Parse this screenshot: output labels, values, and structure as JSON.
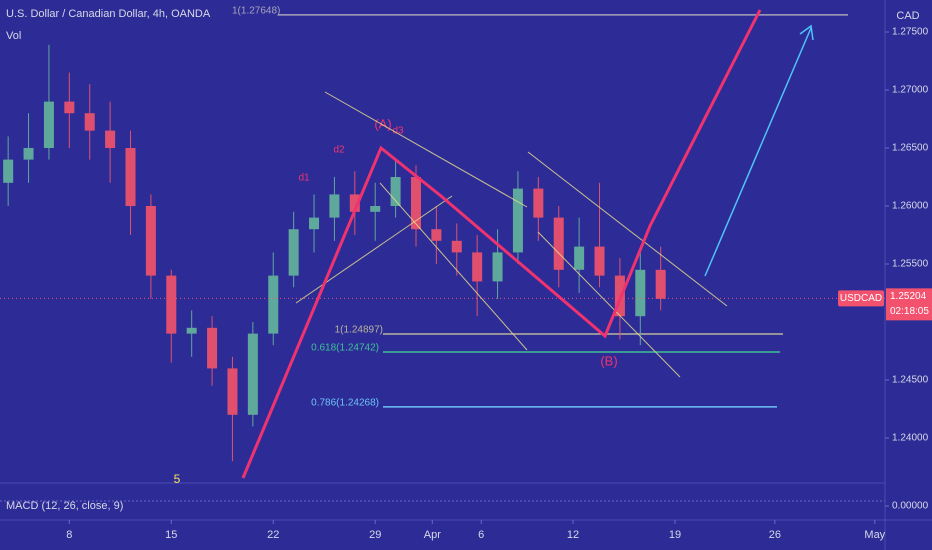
{
  "header": {
    "title": "U.S. Dollar / Canadian Dollar, 4h, OANDA",
    "volume_label": "Vol",
    "currency": "CAD"
  },
  "chart_data": {
    "type": "candlestick",
    "x": [
      -3,
      -2,
      -1,
      0,
      1,
      2,
      3,
      4,
      5,
      6,
      7,
      8,
      9,
      10,
      11,
      12,
      13,
      14,
      15,
      16,
      17,
      18,
      19,
      20,
      21,
      22,
      23,
      24,
      25,
      26,
      27,
      28,
      29
    ],
    "open": [
      1.262,
      1.264,
      1.265,
      1.269,
      1.268,
      1.2665,
      1.265,
      1.26,
      1.254,
      1.249,
      1.2495,
      1.246,
      1.242,
      1.249,
      1.254,
      1.258,
      1.259,
      1.261,
      1.2595,
      1.26,
      1.2625,
      1.258,
      1.257,
      1.256,
      1.2535,
      1.256,
      1.2615,
      1.259,
      1.2545,
      1.2565,
      1.254,
      1.2505,
      1.2545
    ],
    "high": [
      1.266,
      1.268,
      1.2739,
      1.2715,
      1.2705,
      1.269,
      1.2665,
      1.261,
      1.2545,
      1.251,
      1.2505,
      1.247,
      1.25,
      1.256,
      1.2595,
      1.261,
      1.2625,
      1.263,
      1.262,
      1.264,
      1.2635,
      1.26,
      1.2585,
      1.2575,
      1.258,
      1.263,
      1.2625,
      1.26,
      1.259,
      1.262,
      1.2555,
      1.256,
      1.2565
    ],
    "low": [
      1.26,
      1.262,
      1.264,
      1.265,
      1.264,
      1.262,
      1.2575,
      1.252,
      1.2465,
      1.247,
      1.2445,
      1.238,
      1.241,
      1.248,
      1.253,
      1.256,
      1.257,
      1.2575,
      1.257,
      1.259,
      1.2565,
      1.255,
      1.254,
      1.2505,
      1.252,
      1.255,
      1.257,
      1.253,
      1.2525,
      1.253,
      1.2485,
      1.248,
      1.251
    ],
    "close": [
      1.264,
      1.265,
      1.269,
      1.268,
      1.2665,
      1.265,
      1.26,
      1.254,
      1.249,
      1.2495,
      1.246,
      1.242,
      1.249,
      1.254,
      1.258,
      1.259,
      1.261,
      1.2595,
      1.26,
      1.2625,
      1.258,
      1.257,
      1.256,
      1.2535,
      1.256,
      1.2615,
      1.259,
      1.2545,
      1.2565,
      1.254,
      1.2505,
      1.2545,
      1.252
    ],
    "up_color": "#5fa89c",
    "down_color": "#e0506e",
    "xlim": [
      -3.4,
      40
    ],
    "xticks": [
      {
        "value": 0,
        "label": "8"
      },
      {
        "value": 5,
        "label": "15"
      },
      {
        "value": 10,
        "label": "22"
      },
      {
        "value": 15,
        "label": "29"
      },
      {
        "value": 17.8,
        "label": "Apr"
      },
      {
        "value": 20.2,
        "label": "6"
      },
      {
        "value": 24.7,
        "label": "12"
      },
      {
        "value": 29.7,
        "label": "19"
      },
      {
        "value": 34.6,
        "label": "26"
      },
      {
        "value": 39.5,
        "label": "May"
      }
    ],
    "ylim": [
      1.23638,
      1.27776
    ],
    "yticks": [
      {
        "value": 1.275,
        "label": "1.27500"
      },
      {
        "value": 1.27,
        "label": "1.27000"
      },
      {
        "value": 1.265,
        "label": "1.26500"
      },
      {
        "value": 1.26,
        "label": "1.26000"
      },
      {
        "value": 1.255,
        "label": "1.25500"
      },
      {
        "value": 1.245,
        "label": "1.24500"
      },
      {
        "value": 1.24,
        "label": "1.24000"
      }
    ],
    "levels": [
      {
        "label": "1(1.27648)",
        "value": 1.27648,
        "color": "#a7a3b8"
      },
      {
        "label": "1(1.24897)",
        "value": 1.24897,
        "color": "#b9b49a"
      },
      {
        "label": "0.618(1.24742)",
        "value": 1.24742,
        "color": "#3fbf96"
      },
      {
        "label": "0.786(1.24268)",
        "value": 1.24268,
        "color": "#6cc3f5"
      }
    ],
    "last_price": {
      "symbol": "USDCAD",
      "value": 1.25204,
      "countdown": "02:18:05",
      "color": "#f2526e"
    },
    "annotations": [
      "(A)",
      "d3",
      "d2",
      "d1",
      "(B)",
      "5"
    ],
    "indicator": {
      "label": "MACD (12, 26, close, 9)",
      "yticks": [
        {
          "value": 0,
          "label": "0.00000"
        }
      ]
    }
  }
}
